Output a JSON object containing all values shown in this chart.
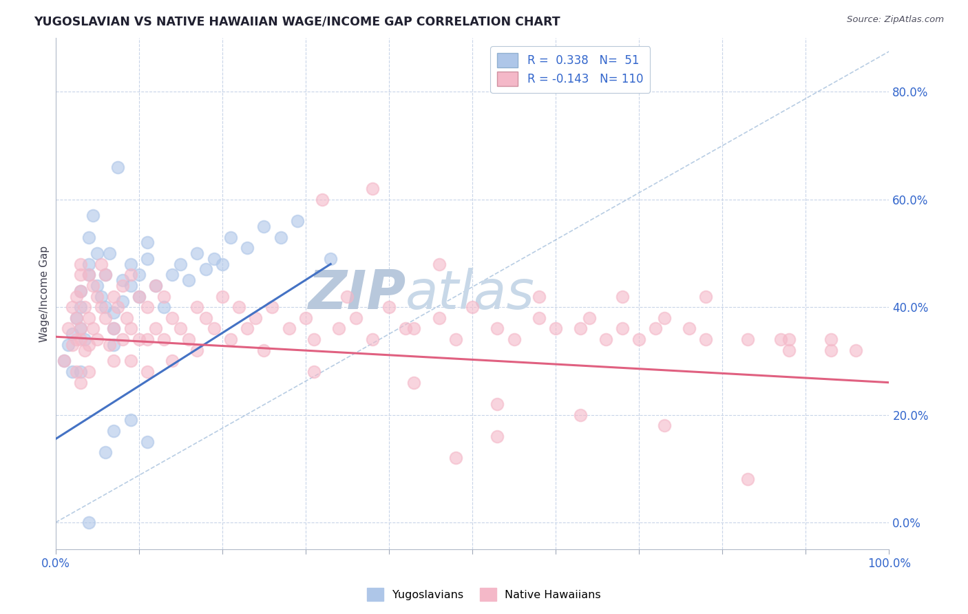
{
  "title": "YUGOSLAVIAN VS NATIVE HAWAIIAN WAGE/INCOME GAP CORRELATION CHART",
  "source": "Source: ZipAtlas.com",
  "ylabel": "Wage/Income Gap",
  "legend_entries": [
    {
      "label": "Yugoslavians",
      "color": "#aec6e8",
      "line_color": "#4472c4",
      "R": 0.338,
      "N": 51
    },
    {
      "label": "Native Hawaiians",
      "color": "#f4b8c8",
      "line_color": "#e06080",
      "R": -0.143,
      "N": 110
    }
  ],
  "diagonal_color": "#9ab8d8",
  "background_color": "#ffffff",
  "grid_color": "#c8d4e8",
  "watermark_color": "#d8e4f0",
  "watermark_text": "ZIPatlas",
  "xlim": [
    0.0,
    1.0
  ],
  "ylim": [
    -0.05,
    0.9
  ],
  "yugo_scatter": [
    [
      0.01,
      0.3
    ],
    [
      0.015,
      0.33
    ],
    [
      0.02,
      0.28
    ],
    [
      0.02,
      0.35
    ],
    [
      0.025,
      0.38
    ],
    [
      0.03,
      0.4
    ],
    [
      0.03,
      0.43
    ],
    [
      0.03,
      0.36
    ],
    [
      0.03,
      0.28
    ],
    [
      0.035,
      0.34
    ],
    [
      0.04,
      0.48
    ],
    [
      0.04,
      0.53
    ],
    [
      0.04,
      0.46
    ],
    [
      0.045,
      0.57
    ],
    [
      0.05,
      0.5
    ],
    [
      0.05,
      0.44
    ],
    [
      0.055,
      0.42
    ],
    [
      0.06,
      0.4
    ],
    [
      0.06,
      0.46
    ],
    [
      0.065,
      0.5
    ],
    [
      0.07,
      0.36
    ],
    [
      0.07,
      0.33
    ],
    [
      0.07,
      0.39
    ],
    [
      0.075,
      0.66
    ],
    [
      0.08,
      0.45
    ],
    [
      0.08,
      0.41
    ],
    [
      0.09,
      0.44
    ],
    [
      0.09,
      0.48
    ],
    [
      0.1,
      0.42
    ],
    [
      0.1,
      0.46
    ],
    [
      0.11,
      0.52
    ],
    [
      0.11,
      0.49
    ],
    [
      0.12,
      0.44
    ],
    [
      0.13,
      0.4
    ],
    [
      0.14,
      0.46
    ],
    [
      0.15,
      0.48
    ],
    [
      0.16,
      0.45
    ],
    [
      0.17,
      0.5
    ],
    [
      0.18,
      0.47
    ],
    [
      0.19,
      0.49
    ],
    [
      0.2,
      0.48
    ],
    [
      0.21,
      0.53
    ],
    [
      0.23,
      0.51
    ],
    [
      0.25,
      0.55
    ],
    [
      0.27,
      0.53
    ],
    [
      0.29,
      0.56
    ],
    [
      0.04,
      0.0
    ],
    [
      0.06,
      0.13
    ],
    [
      0.07,
      0.17
    ],
    [
      0.09,
      0.19
    ],
    [
      0.11,
      0.15
    ],
    [
      0.33,
      0.49
    ]
  ],
  "native_scatter": [
    [
      0.01,
      0.3
    ],
    [
      0.015,
      0.36
    ],
    [
      0.02,
      0.4
    ],
    [
      0.02,
      0.33
    ],
    [
      0.025,
      0.38
    ],
    [
      0.025,
      0.42
    ],
    [
      0.025,
      0.34
    ],
    [
      0.025,
      0.28
    ],
    [
      0.03,
      0.46
    ],
    [
      0.03,
      0.36
    ],
    [
      0.03,
      0.43
    ],
    [
      0.03,
      0.48
    ],
    [
      0.03,
      0.34
    ],
    [
      0.03,
      0.26
    ],
    [
      0.035,
      0.4
    ],
    [
      0.035,
      0.32
    ],
    [
      0.04,
      0.46
    ],
    [
      0.04,
      0.38
    ],
    [
      0.04,
      0.33
    ],
    [
      0.04,
      0.28
    ],
    [
      0.045,
      0.44
    ],
    [
      0.045,
      0.36
    ],
    [
      0.05,
      0.42
    ],
    [
      0.05,
      0.34
    ],
    [
      0.055,
      0.48
    ],
    [
      0.055,
      0.4
    ],
    [
      0.06,
      0.46
    ],
    [
      0.06,
      0.38
    ],
    [
      0.065,
      0.33
    ],
    [
      0.07,
      0.42
    ],
    [
      0.07,
      0.36
    ],
    [
      0.07,
      0.3
    ],
    [
      0.075,
      0.4
    ],
    [
      0.08,
      0.44
    ],
    [
      0.08,
      0.34
    ],
    [
      0.085,
      0.38
    ],
    [
      0.09,
      0.46
    ],
    [
      0.09,
      0.36
    ],
    [
      0.09,
      0.3
    ],
    [
      0.1,
      0.42
    ],
    [
      0.1,
      0.34
    ],
    [
      0.11,
      0.4
    ],
    [
      0.11,
      0.34
    ],
    [
      0.11,
      0.28
    ],
    [
      0.12,
      0.44
    ],
    [
      0.12,
      0.36
    ],
    [
      0.13,
      0.42
    ],
    [
      0.13,
      0.34
    ],
    [
      0.14,
      0.38
    ],
    [
      0.14,
      0.3
    ],
    [
      0.15,
      0.36
    ],
    [
      0.16,
      0.34
    ],
    [
      0.17,
      0.4
    ],
    [
      0.17,
      0.32
    ],
    [
      0.18,
      0.38
    ],
    [
      0.19,
      0.36
    ],
    [
      0.2,
      0.42
    ],
    [
      0.21,
      0.34
    ],
    [
      0.22,
      0.4
    ],
    [
      0.23,
      0.36
    ],
    [
      0.24,
      0.38
    ],
    [
      0.25,
      0.32
    ],
    [
      0.26,
      0.4
    ],
    [
      0.28,
      0.36
    ],
    [
      0.3,
      0.38
    ],
    [
      0.31,
      0.34
    ],
    [
      0.32,
      0.6
    ],
    [
      0.34,
      0.36
    ],
    [
      0.35,
      0.42
    ],
    [
      0.36,
      0.38
    ],
    [
      0.38,
      0.34
    ],
    [
      0.4,
      0.4
    ],
    [
      0.42,
      0.36
    ],
    [
      0.43,
      0.36
    ],
    [
      0.46,
      0.38
    ],
    [
      0.48,
      0.34
    ],
    [
      0.5,
      0.4
    ],
    [
      0.53,
      0.36
    ],
    [
      0.55,
      0.34
    ],
    [
      0.58,
      0.38
    ],
    [
      0.6,
      0.36
    ],
    [
      0.63,
      0.36
    ],
    [
      0.64,
      0.38
    ],
    [
      0.66,
      0.34
    ],
    [
      0.68,
      0.36
    ],
    [
      0.7,
      0.34
    ],
    [
      0.72,
      0.36
    ],
    [
      0.73,
      0.38
    ],
    [
      0.76,
      0.36
    ],
    [
      0.78,
      0.34
    ],
    [
      0.83,
      0.34
    ],
    [
      0.87,
      0.34
    ],
    [
      0.88,
      0.32
    ],
    [
      0.31,
      0.28
    ],
    [
      0.43,
      0.26
    ],
    [
      0.53,
      0.22
    ],
    [
      0.63,
      0.2
    ],
    [
      0.73,
      0.18
    ],
    [
      0.48,
      0.12
    ],
    [
      0.53,
      0.16
    ],
    [
      0.46,
      0.48
    ],
    [
      0.58,
      0.42
    ],
    [
      0.68,
      0.42
    ],
    [
      0.78,
      0.42
    ],
    [
      0.83,
      0.08
    ],
    [
      0.88,
      0.34
    ],
    [
      0.93,
      0.32
    ],
    [
      0.38,
      0.62
    ],
    [
      0.93,
      0.34
    ],
    [
      0.96,
      0.32
    ]
  ],
  "yugo_line": [
    [
      0.0,
      0.155
    ],
    [
      0.33,
      0.48
    ]
  ],
  "native_line": [
    [
      0.0,
      0.345
    ],
    [
      1.0,
      0.26
    ]
  ],
  "diagonal_line": [
    [
      0.0,
      0.0
    ],
    [
      1.0,
      0.875
    ]
  ],
  "yticks": [
    0.0,
    0.2,
    0.4,
    0.6,
    0.8
  ],
  "ytick_labels": [
    "0.0%",
    "20.0%",
    "40.0%",
    "60.0%",
    "80.0%"
  ],
  "xtick_positions": [
    0.0,
    0.1,
    0.2,
    0.3,
    0.4,
    0.5,
    0.6,
    0.7,
    0.8,
    0.9,
    1.0
  ],
  "xtick_show": {
    "0.0": "0.0%",
    "1.0": "100.0%"
  }
}
